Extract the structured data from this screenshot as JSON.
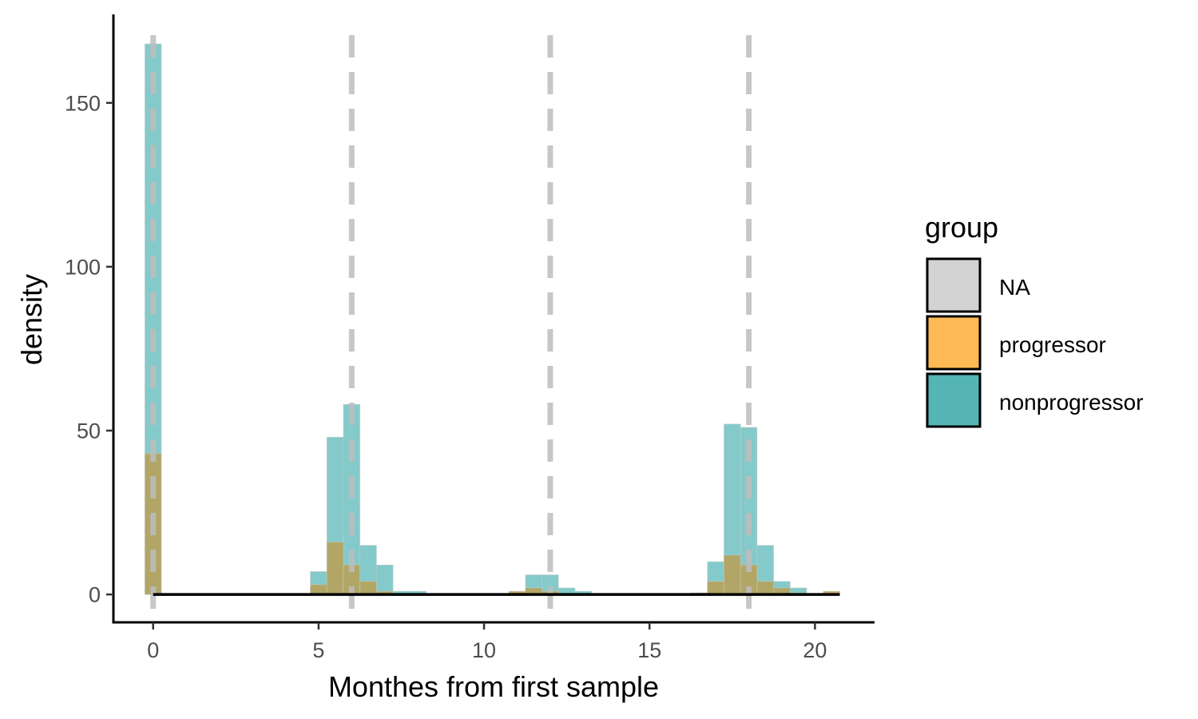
{
  "chart_data": {
    "type": "bar",
    "subtype": "overlaid histogram (density)",
    "title": "",
    "xlabel": "Monthes from first sample",
    "ylabel": "density",
    "xlim": [
      -1.2,
      21.8
    ],
    "ylim": [
      -8.5,
      177
    ],
    "x_ticks": [
      0,
      5,
      10,
      15,
      20
    ],
    "y_ticks": [
      0,
      50,
      100,
      150
    ],
    "grid": false,
    "reference_lines": {
      "style": "dashed",
      "color": "#bdbdbd",
      "x": [
        0,
        6,
        12,
        18
      ]
    },
    "baseline": {
      "y": 0,
      "x_range": [
        0,
        20.75
      ]
    },
    "bin_width": 0.5,
    "legend": {
      "title": "group",
      "position": "right",
      "entries": [
        {
          "label": "NA",
          "color": "#d3d3d3"
        },
        {
          "label": "progressor",
          "color": "#fdba55"
        },
        {
          "label": "nonprogressor",
          "color": "#55b5b5"
        }
      ]
    },
    "series": [
      {
        "name": "nonprogressor",
        "color": "#55b5b5",
        "opacity": 0.72,
        "bins": [
          {
            "x0": -0.25,
            "x1": 0.25,
            "y": 168
          },
          {
            "x0": 4.75,
            "x1": 5.25,
            "y": 7
          },
          {
            "x0": 5.25,
            "x1": 5.75,
            "y": 48
          },
          {
            "x0": 5.75,
            "x1": 6.25,
            "y": 58
          },
          {
            "x0": 6.25,
            "x1": 6.75,
            "y": 15
          },
          {
            "x0": 6.75,
            "x1": 7.25,
            "y": 9
          },
          {
            "x0": 7.25,
            "x1": 7.75,
            "y": 1
          },
          {
            "x0": 7.75,
            "x1": 8.25,
            "y": 1
          },
          {
            "x0": 10.75,
            "x1": 11.25,
            "y": 0.5
          },
          {
            "x0": 11.25,
            "x1": 11.75,
            "y": 6
          },
          {
            "x0": 11.75,
            "x1": 12.25,
            "y": 6
          },
          {
            "x0": 12.25,
            "x1": 12.75,
            "y": 2
          },
          {
            "x0": 12.75,
            "x1": 13.25,
            "y": 1
          },
          {
            "x0": 16.75,
            "x1": 17.25,
            "y": 10
          },
          {
            "x0": 17.25,
            "x1": 17.75,
            "y": 52
          },
          {
            "x0": 17.75,
            "x1": 18.25,
            "y": 51
          },
          {
            "x0": 18.25,
            "x1": 18.75,
            "y": 15
          },
          {
            "x0": 18.75,
            "x1": 19.25,
            "y": 4
          },
          {
            "x0": 19.25,
            "x1": 19.75,
            "y": 2
          }
        ]
      },
      {
        "name": "progressor",
        "color": "#b8a054",
        "opacity": 0.85,
        "bins": [
          {
            "x0": -0.25,
            "x1": 0.25,
            "y": 43
          },
          {
            "x0": 4.75,
            "x1": 5.25,
            "y": 3
          },
          {
            "x0": 5.25,
            "x1": 5.75,
            "y": 16
          },
          {
            "x0": 5.75,
            "x1": 6.25,
            "y": 9
          },
          {
            "x0": 6.25,
            "x1": 6.75,
            "y": 4
          },
          {
            "x0": 6.75,
            "x1": 7.25,
            "y": 1
          },
          {
            "x0": 10.75,
            "x1": 11.25,
            "y": 1
          },
          {
            "x0": 11.25,
            "x1": 11.75,
            "y": 2
          },
          {
            "x0": 11.75,
            "x1": 12.25,
            "y": 1
          },
          {
            "x0": 16.25,
            "x1": 16.75,
            "y": 0.5
          },
          {
            "x0": 16.75,
            "x1": 17.25,
            "y": 4
          },
          {
            "x0": 17.25,
            "x1": 17.75,
            "y": 12
          },
          {
            "x0": 17.75,
            "x1": 18.25,
            "y": 9
          },
          {
            "x0": 18.25,
            "x1": 18.75,
            "y": 4
          },
          {
            "x0": 18.75,
            "x1": 19.25,
            "y": 2
          },
          {
            "x0": 19.25,
            "x1": 19.75,
            "y": 0.5
          },
          {
            "x0": 20.25,
            "x1": 20.75,
            "y": 1
          }
        ]
      }
    ]
  }
}
